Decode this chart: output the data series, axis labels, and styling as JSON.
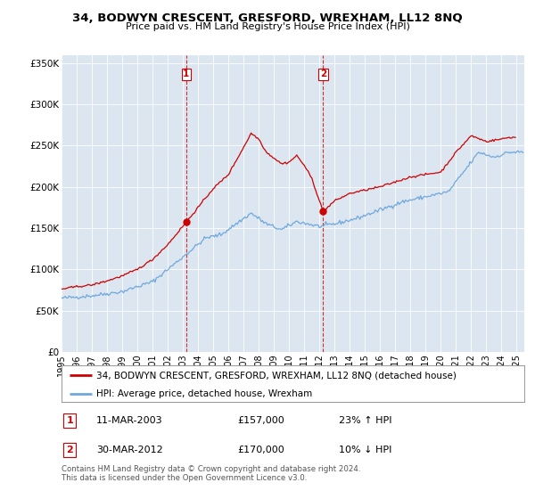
{
  "title": "34, BODWYN CRESCENT, GRESFORD, WREXHAM, LL12 8NQ",
  "subtitle": "Price paid vs. HM Land Registry's House Price Index (HPI)",
  "legend_line1": "34, BODWYN CRESCENT, GRESFORD, WREXHAM, LL12 8NQ (detached house)",
  "legend_line2": "HPI: Average price, detached house, Wrexham",
  "annotation1_label": "1",
  "annotation1_date": "11-MAR-2003",
  "annotation1_price": "£157,000",
  "annotation1_hpi": "23% ↑ HPI",
  "annotation2_label": "2",
  "annotation2_date": "30-MAR-2012",
  "annotation2_price": "£170,000",
  "annotation2_hpi": "10% ↓ HPI",
  "footnote": "Contains HM Land Registry data © Crown copyright and database right 2024.\nThis data is licensed under the Open Government Licence v3.0.",
  "sale1_year": 2003.21,
  "sale1_price": 157000,
  "sale2_year": 2012.24,
  "sale2_price": 170000,
  "hpi_color": "#6fa8dc",
  "price_color": "#cc0000",
  "sale_marker_color": "#cc0000",
  "vline_color": "#cc0000",
  "plot_bg_color": "#dce6f1",
  "ylim": [
    0,
    360000
  ],
  "xlim_start": 1995,
  "xlim_end": 2025.5,
  "yticks": [
    0,
    50000,
    100000,
    150000,
    200000,
    250000,
    300000,
    350000
  ],
  "ytick_labels": [
    "£0",
    "£50K",
    "£100K",
    "£150K",
    "£200K",
    "£250K",
    "£300K",
    "£350K"
  ],
  "xtick_years": [
    1995,
    1996,
    1997,
    1998,
    1999,
    2000,
    2001,
    2002,
    2003,
    2004,
    2005,
    2006,
    2007,
    2008,
    2009,
    2010,
    2011,
    2012,
    2013,
    2014,
    2015,
    2016,
    2017,
    2018,
    2019,
    2020,
    2021,
    2022,
    2023,
    2024,
    2025
  ],
  "hpi_anchors_x": [
    1995.0,
    1997.0,
    1999.0,
    2001.0,
    2003.0,
    2004.5,
    2005.5,
    2007.5,
    2008.5,
    2009.5,
    2010.5,
    2012.0,
    2013.0,
    2014.5,
    2016.0,
    2017.5,
    2019.0,
    2020.5,
    2021.5,
    2022.5,
    2023.5,
    2024.5
  ],
  "hpi_anchors_y": [
    65000,
    68000,
    73000,
    85000,
    115000,
    138000,
    142000,
    168000,
    155000,
    148000,
    158000,
    152000,
    155000,
    162000,
    172000,
    182000,
    188000,
    194000,
    218000,
    242000,
    236000,
    242000
  ],
  "price_anchors_x": [
    1995.0,
    1996.0,
    1997.0,
    1998.0,
    1999.0,
    2000.0,
    2001.0,
    2002.0,
    2003.21,
    2004.0,
    2005.0,
    2006.0,
    2007.0,
    2007.5,
    2008.0,
    2008.5,
    2009.0,
    2009.5,
    2010.0,
    2010.5,
    2011.0,
    2011.5,
    2012.24,
    2013.0,
    2014.0,
    2015.0,
    2016.0,
    2017.0,
    2018.0,
    2019.0,
    2020.0,
    2021.0,
    2022.0,
    2023.0,
    2024.0,
    2024.5
  ],
  "price_anchors_y": [
    76000,
    79000,
    81000,
    86000,
    92000,
    100000,
    112000,
    130000,
    157000,
    175000,
    198000,
    215000,
    248000,
    265000,
    258000,
    242000,
    235000,
    228000,
    230000,
    238000,
    226000,
    210000,
    170000,
    183000,
    192000,
    196000,
    200000,
    206000,
    212000,
    215000,
    218000,
    242000,
    262000,
    255000,
    258000,
    260000
  ],
  "noise_seed": 42,
  "hpi_noise_std": 1200,
  "price_noise_std": 600
}
